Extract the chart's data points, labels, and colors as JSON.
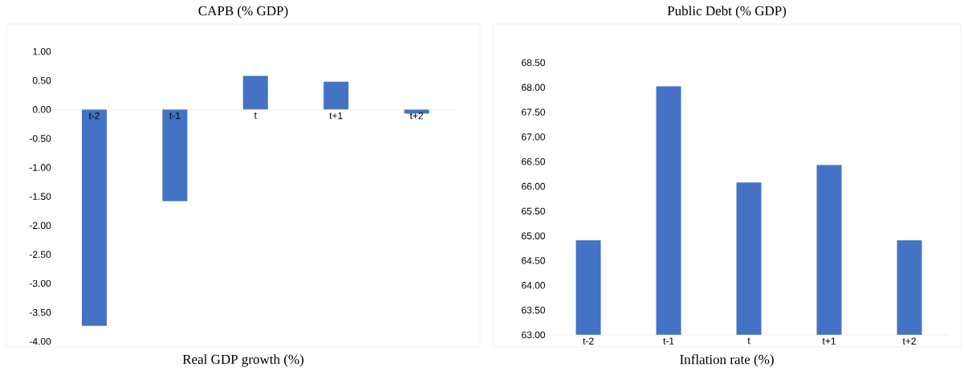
{
  "chart_data": [
    {
      "type": "bar",
      "title": "CAPB (% GDP)",
      "xlabel": "Real GDP growth (%)",
      "categories": [
        "t-2",
        "t-1",
        "t",
        "t+1",
        "t+2"
      ],
      "values": [
        -3.73,
        -1.58,
        0.58,
        0.48,
        -0.07
      ],
      "color": "#4472c4",
      "ylim": [
        -4,
        1
      ],
      "yticks": [
        {
          "value": -4,
          "label": "-4.00"
        },
        {
          "value": -3.5,
          "label": "-3.50"
        },
        {
          "value": -3,
          "label": "-3.00"
        },
        {
          "value": -2.5,
          "label": "-2.50"
        },
        {
          "value": -2,
          "label": "-2.00"
        },
        {
          "value": -1.5,
          "label": "-1.50"
        },
        {
          "value": -1,
          "label": "-1.00"
        },
        {
          "value": -0.5,
          "label": "-0.50"
        },
        {
          "value": 0,
          "label": "0.00"
        },
        {
          "value": 0.5,
          "label": "0.50"
        },
        {
          "value": 1,
          "label": "1.00"
        }
      ]
    },
    {
      "type": "bar",
      "title": "Public Debt (% GDP)",
      "xlabel": "Inflation rate (%)",
      "categories": [
        "t-2",
        "t-1",
        "t",
        "t+1",
        "t+2"
      ],
      "values": [
        64.91,
        68.02,
        66.08,
        66.43,
        64.91
      ],
      "color": "#4472c4",
      "ylim": [
        63,
        68.5
      ],
      "yticks": [
        {
          "value": 63,
          "label": "63.00"
        },
        {
          "value": 63.5,
          "label": "63.50"
        },
        {
          "value": 64,
          "label": "64.00"
        },
        {
          "value": 64.5,
          "label": "64.50"
        },
        {
          "value": 65,
          "label": "65.00"
        },
        {
          "value": 65.5,
          "label": "65.50"
        },
        {
          "value": 66,
          "label": "66.00"
        },
        {
          "value": 66.5,
          "label": "66.50"
        },
        {
          "value": 67,
          "label": "67.00"
        },
        {
          "value": 67.5,
          "label": "67.50"
        },
        {
          "value": 68,
          "label": "68.00"
        },
        {
          "value": 68.5,
          "label": "68.50"
        }
      ]
    }
  ]
}
